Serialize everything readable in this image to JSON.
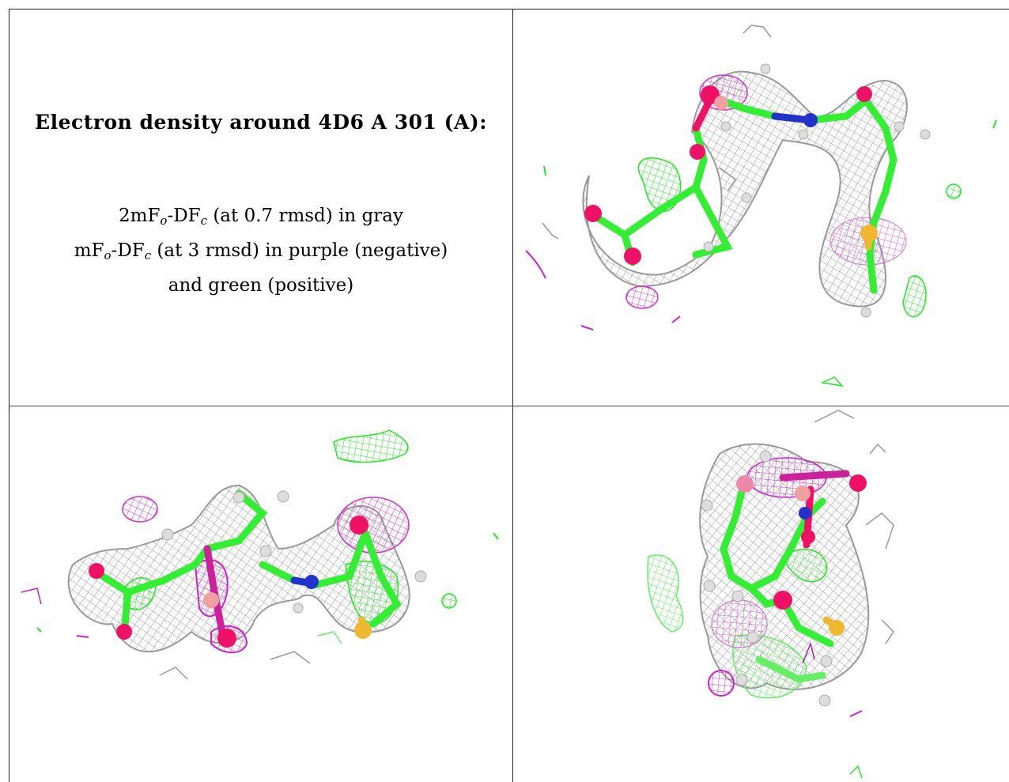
{
  "caption": {
    "title": "Electron density around 4D6 A 301 (A):",
    "line1_prefix": "2mF",
    "line1_sub_o": "o",
    "line1_mid": "-DF",
    "line1_sub_c": "c",
    "line1_suffix": " (at 0.7 rmsd) in gray",
    "line2_prefix": "mF",
    "line2_sub_o": "o",
    "line2_mid": "-DF",
    "line2_sub_c": "c",
    "line2_suffix": " (at 3 rmsd) in purple (negative)",
    "line3": "and green (positive)"
  },
  "panels": [
    {
      "name": "view-top-right",
      "description_icon": "electron-density-render"
    },
    {
      "name": "view-bottom-left",
      "description_icon": "electron-density-render"
    },
    {
      "name": "view-bottom-right",
      "description_icon": "electron-density-render"
    }
  ],
  "colors": {
    "mesh_gray": "#9a9a9a",
    "mesh_green": "#22e822",
    "mesh_purple": "#cc22cc",
    "carbon": "#33ee33",
    "oxygen": "#ee1166",
    "nitrogen": "#2233cc",
    "sulfur": "#f0b830",
    "phosphorus": "#f0a0a0",
    "hydrogen": "#dddddd"
  }
}
